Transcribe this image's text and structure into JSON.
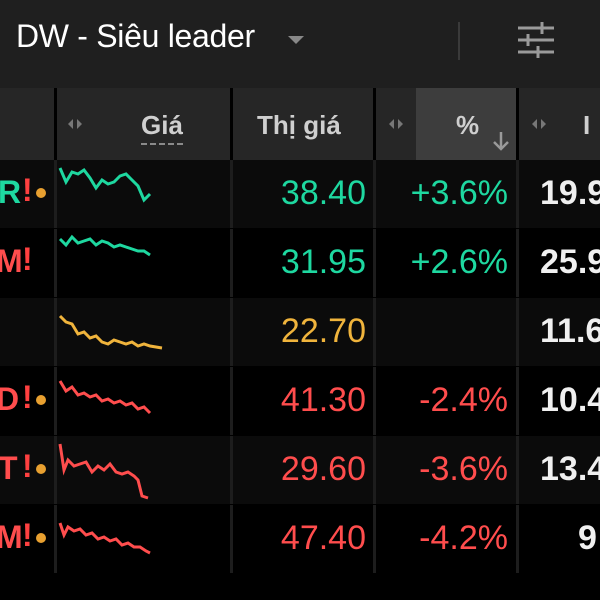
{
  "header": {
    "title": "DW - Siêu leader"
  },
  "columns": {
    "gia": "Giá",
    "thi_gia": "Thị giá",
    "pct": "%",
    "next": "I"
  },
  "rows": [
    {
      "symbol": "R",
      "flag": "!",
      "dot": true,
      "price": "38.40",
      "pct": "+3.6%",
      "vol": "19.9",
      "trend": "up"
    },
    {
      "symbol": "M",
      "flag": "!",
      "dot": false,
      "price": "31.95",
      "pct": "+2.6%",
      "vol": "25.9",
      "trend": "up"
    },
    {
      "symbol": "",
      "flag": "",
      "dot": false,
      "price": "22.70",
      "pct": "",
      "vol": "11.6",
      "trend": "ref"
    },
    {
      "symbol": "D",
      "flag": "!",
      "dot": true,
      "price": "41.30",
      "pct": "-2.4%",
      "vol": "10.4",
      "trend": "dn"
    },
    {
      "symbol": "T",
      "flag": "!",
      "dot": true,
      "price": "29.60",
      "pct": "-3.6%",
      "vol": "13.4",
      "trend": "dn"
    },
    {
      "symbol": "M",
      "flag": "!",
      "dot": true,
      "price": "47.40",
      "pct": "-4.2%",
      "vol": "9",
      "trend": "dn"
    }
  ],
  "colors": {
    "up": "#1ed8a0",
    "ref": "#f0b43c",
    "down": "#ff4d4d",
    "header_bg": "#1f1f1f"
  }
}
